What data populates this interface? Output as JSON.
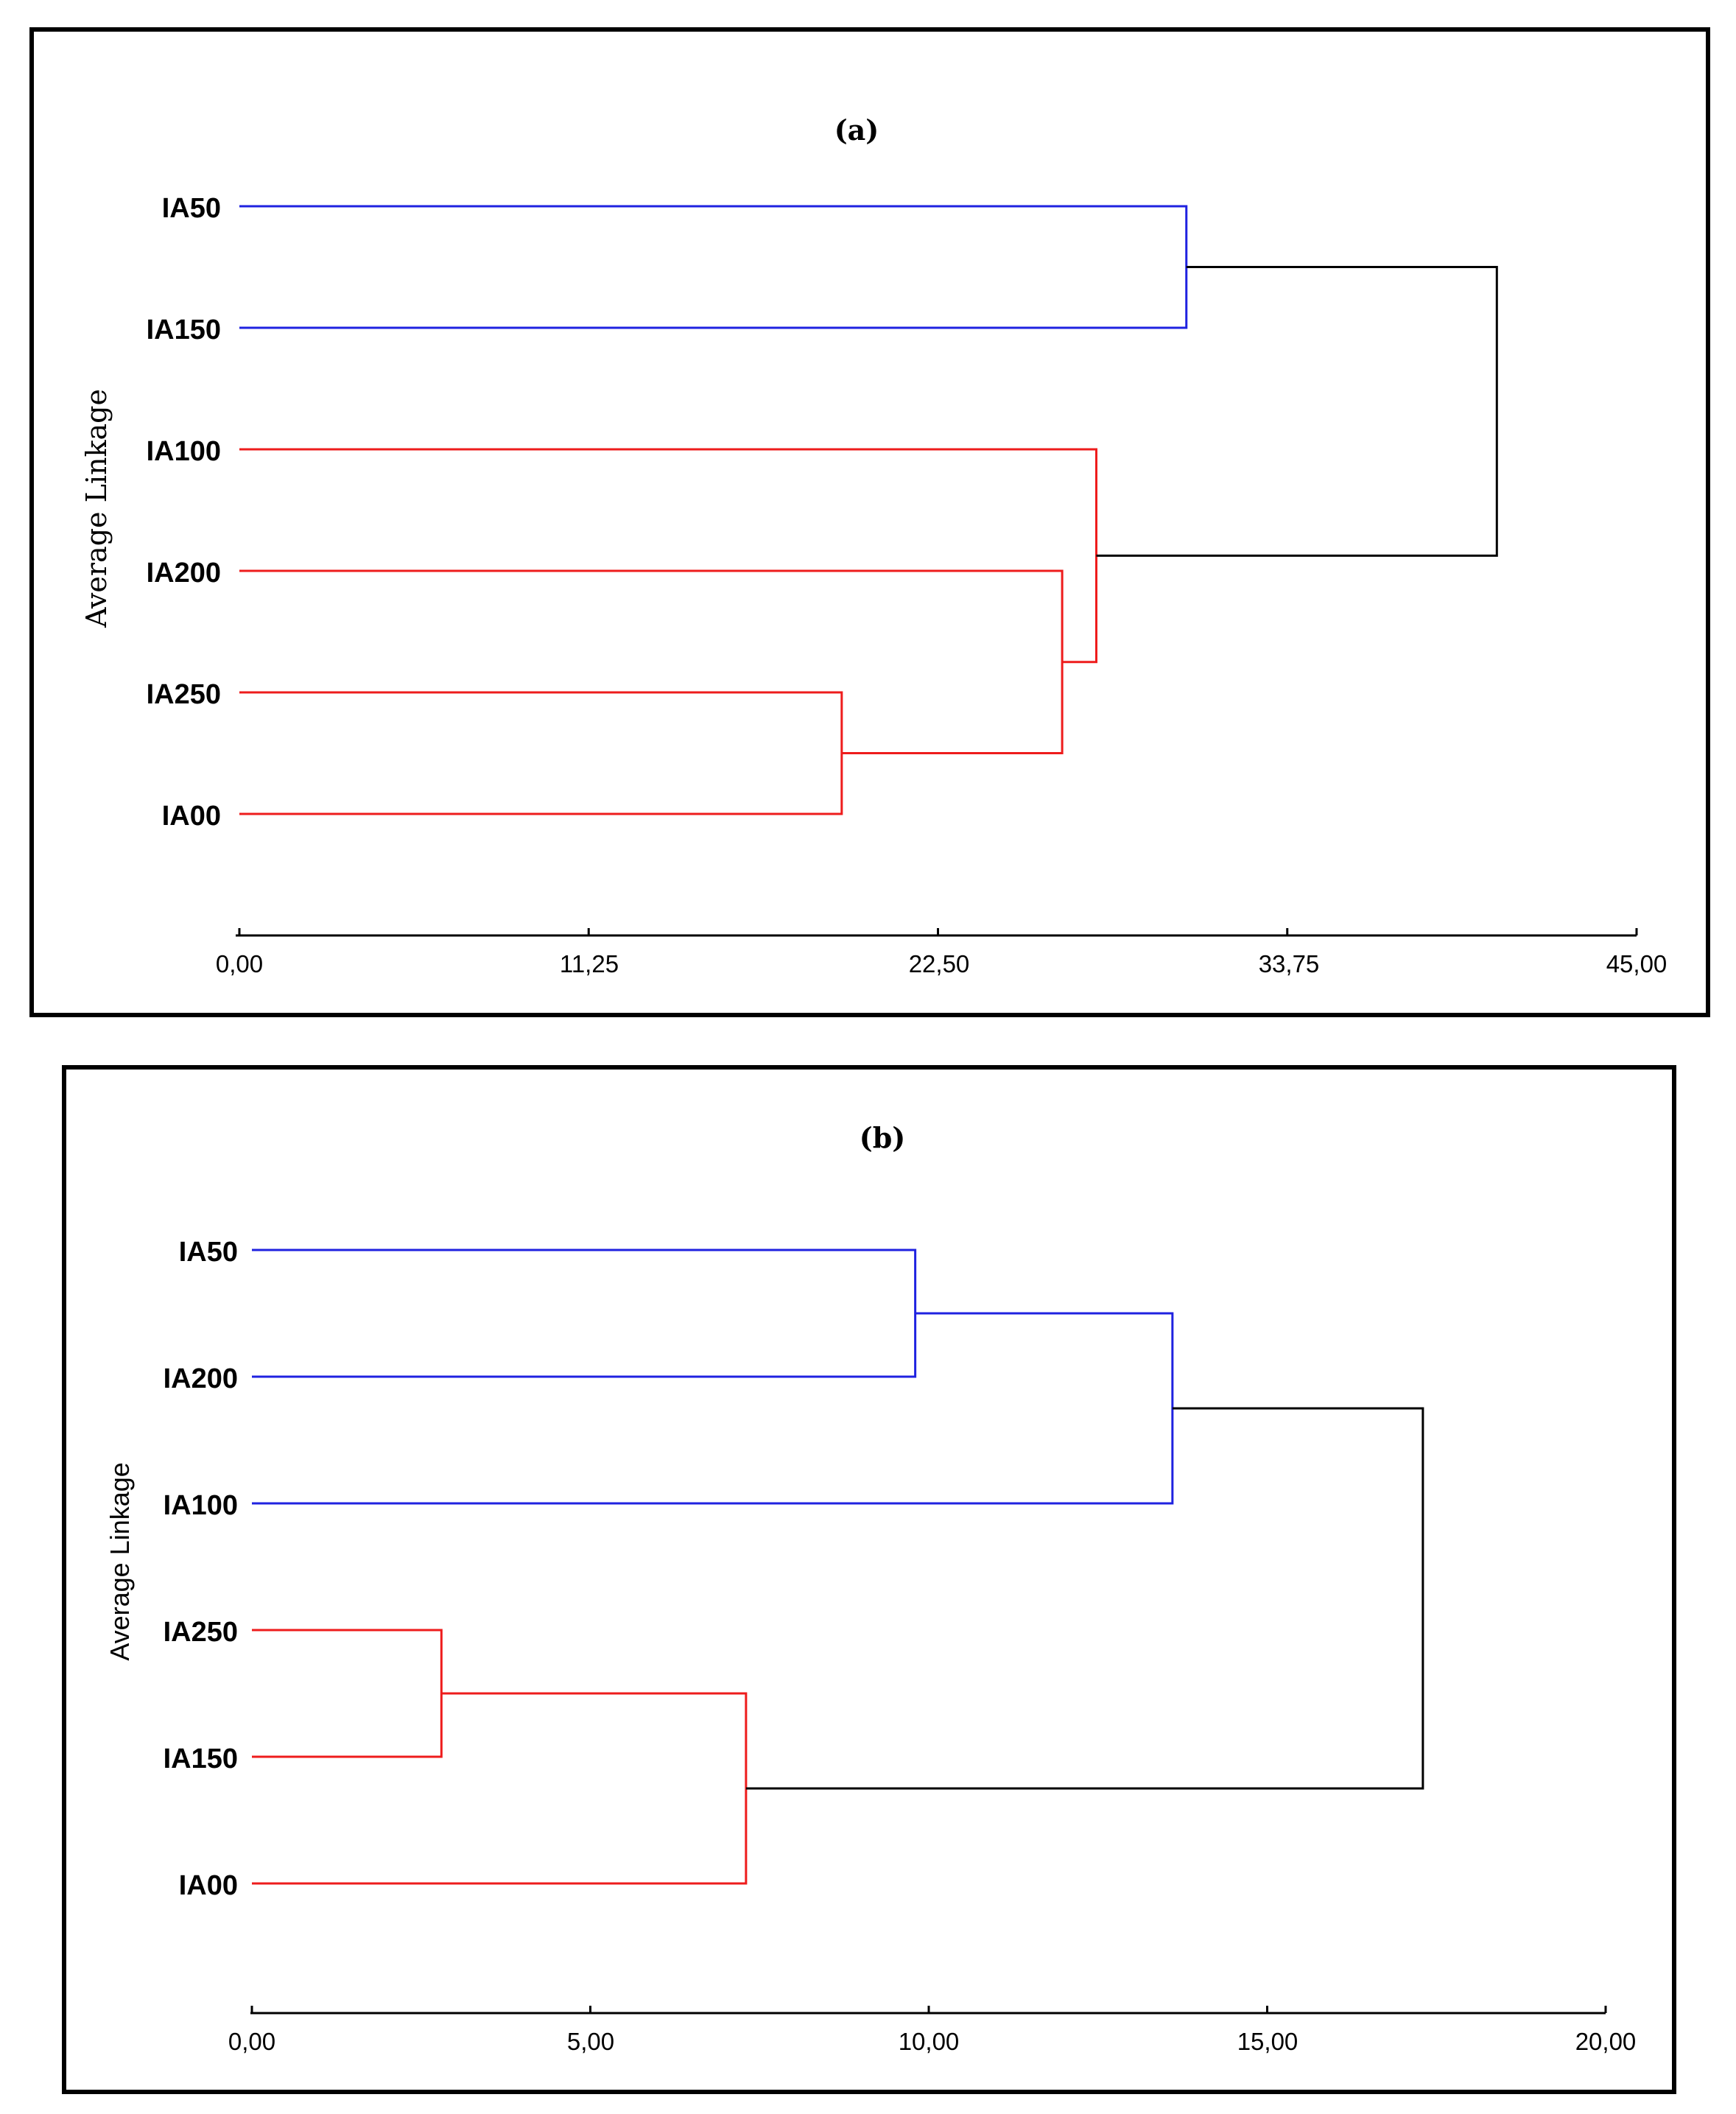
{
  "chart_data": [
    {
      "type": "dendrogram",
      "title": "(a)",
      "ylabel": "Average Linkage",
      "xlim": [
        0,
        45
      ],
      "ticks": [
        "0,00",
        "11,25",
        "22,50",
        "33,75",
        "45,00"
      ],
      "tick_values": [
        0,
        11.25,
        22.5,
        33.75,
        45
      ],
      "leaves": [
        "IA50",
        "IA150",
        "IA100",
        "IA200",
        "IA250",
        "IA00"
      ],
      "colors": {
        "cluster1": "#1f22e0",
        "cluster2": "#ee1c1c",
        "root": "#000000"
      },
      "merges": [
        {
          "a": 0,
          "b": 1,
          "height": 30.5,
          "color": "cluster1"
        },
        {
          "a": 4,
          "b": 5,
          "height": 19.4,
          "color": "cluster2"
        },
        {
          "a": 3,
          "b": "m2",
          "height": 26.5,
          "color": "cluster2"
        },
        {
          "a": 2,
          "b": "m3",
          "height": 27.6,
          "color": "cluster2"
        },
        {
          "a": "m1",
          "b": "m4",
          "height": 40.5,
          "color": "root"
        }
      ]
    },
    {
      "type": "dendrogram",
      "title": "(b)",
      "ylabel": "Average Linkage",
      "xlim": [
        0,
        20
      ],
      "ticks": [
        "0,00",
        "5,00",
        "10,00",
        "15,00",
        "20,00"
      ],
      "tick_values": [
        0,
        5,
        10,
        15,
        20
      ],
      "leaves": [
        "IA50",
        "IA200",
        "IA100",
        "IA250",
        "IA150",
        "IA00"
      ],
      "colors": {
        "cluster1": "#1f22e0",
        "cluster2": "#ee1c1c",
        "root": "#000000"
      },
      "merges": [
        {
          "a": 0,
          "b": 1,
          "height": 9.8,
          "color": "cluster1"
        },
        {
          "a": "m1",
          "b": 2,
          "height": 13.6,
          "color": "cluster1"
        },
        {
          "a": 3,
          "b": 4,
          "height": 2.8,
          "color": "cluster2"
        },
        {
          "a": "m3",
          "b": 5,
          "height": 7.3,
          "color": "cluster2"
        },
        {
          "a": "m2",
          "b": "m4",
          "height": 17.3,
          "color": "root"
        }
      ]
    }
  ]
}
